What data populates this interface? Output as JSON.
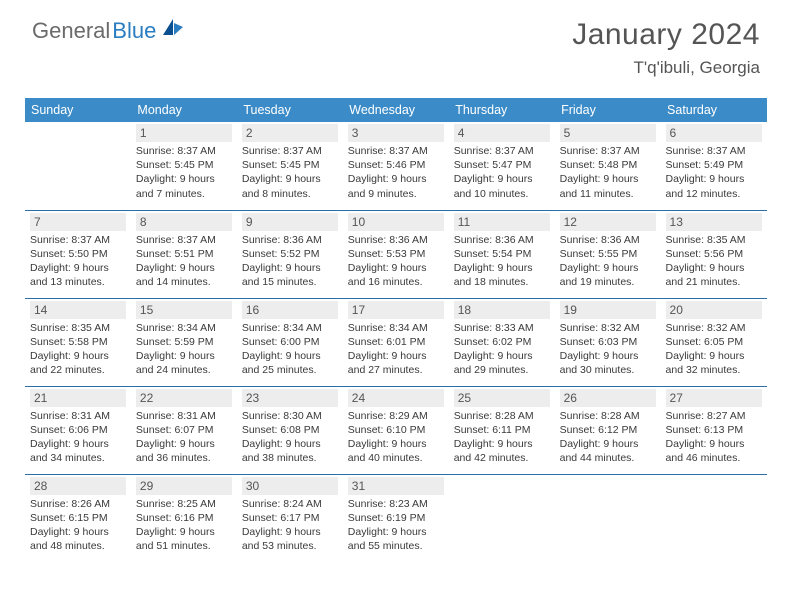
{
  "logo": {
    "part1": "General",
    "part2": "Blue"
  },
  "title": "January 2024",
  "location": "T'q'ibuli, Georgia",
  "header_bg": "#3b8bc8",
  "row_border": "#2a6fa8",
  "daynum_bg": "#ededed",
  "days": [
    "Sunday",
    "Monday",
    "Tuesday",
    "Wednesday",
    "Thursday",
    "Friday",
    "Saturday"
  ],
  "weeks": [
    [
      null,
      {
        "n": "1",
        "sr": "8:37 AM",
        "ss": "5:45 PM",
        "dl": "9 hours and 7 minutes."
      },
      {
        "n": "2",
        "sr": "8:37 AM",
        "ss": "5:45 PM",
        "dl": "9 hours and 8 minutes."
      },
      {
        "n": "3",
        "sr": "8:37 AM",
        "ss": "5:46 PM",
        "dl": "9 hours and 9 minutes."
      },
      {
        "n": "4",
        "sr": "8:37 AM",
        "ss": "5:47 PM",
        "dl": "9 hours and 10 minutes."
      },
      {
        "n": "5",
        "sr": "8:37 AM",
        "ss": "5:48 PM",
        "dl": "9 hours and 11 minutes."
      },
      {
        "n": "6",
        "sr": "8:37 AM",
        "ss": "5:49 PM",
        "dl": "9 hours and 12 minutes."
      }
    ],
    [
      {
        "n": "7",
        "sr": "8:37 AM",
        "ss": "5:50 PM",
        "dl": "9 hours and 13 minutes."
      },
      {
        "n": "8",
        "sr": "8:37 AM",
        "ss": "5:51 PM",
        "dl": "9 hours and 14 minutes."
      },
      {
        "n": "9",
        "sr": "8:36 AM",
        "ss": "5:52 PM",
        "dl": "9 hours and 15 minutes."
      },
      {
        "n": "10",
        "sr": "8:36 AM",
        "ss": "5:53 PM",
        "dl": "9 hours and 16 minutes."
      },
      {
        "n": "11",
        "sr": "8:36 AM",
        "ss": "5:54 PM",
        "dl": "9 hours and 18 minutes."
      },
      {
        "n": "12",
        "sr": "8:36 AM",
        "ss": "5:55 PM",
        "dl": "9 hours and 19 minutes."
      },
      {
        "n": "13",
        "sr": "8:35 AM",
        "ss": "5:56 PM",
        "dl": "9 hours and 21 minutes."
      }
    ],
    [
      {
        "n": "14",
        "sr": "8:35 AM",
        "ss": "5:58 PM",
        "dl": "9 hours and 22 minutes."
      },
      {
        "n": "15",
        "sr": "8:34 AM",
        "ss": "5:59 PM",
        "dl": "9 hours and 24 minutes."
      },
      {
        "n": "16",
        "sr": "8:34 AM",
        "ss": "6:00 PM",
        "dl": "9 hours and 25 minutes."
      },
      {
        "n": "17",
        "sr": "8:34 AM",
        "ss": "6:01 PM",
        "dl": "9 hours and 27 minutes."
      },
      {
        "n": "18",
        "sr": "8:33 AM",
        "ss": "6:02 PM",
        "dl": "9 hours and 29 minutes."
      },
      {
        "n": "19",
        "sr": "8:32 AM",
        "ss": "6:03 PM",
        "dl": "9 hours and 30 minutes."
      },
      {
        "n": "20",
        "sr": "8:32 AM",
        "ss": "6:05 PM",
        "dl": "9 hours and 32 minutes."
      }
    ],
    [
      {
        "n": "21",
        "sr": "8:31 AM",
        "ss": "6:06 PM",
        "dl": "9 hours and 34 minutes."
      },
      {
        "n": "22",
        "sr": "8:31 AM",
        "ss": "6:07 PM",
        "dl": "9 hours and 36 minutes."
      },
      {
        "n": "23",
        "sr": "8:30 AM",
        "ss": "6:08 PM",
        "dl": "9 hours and 38 minutes."
      },
      {
        "n": "24",
        "sr": "8:29 AM",
        "ss": "6:10 PM",
        "dl": "9 hours and 40 minutes."
      },
      {
        "n": "25",
        "sr": "8:28 AM",
        "ss": "6:11 PM",
        "dl": "9 hours and 42 minutes."
      },
      {
        "n": "26",
        "sr": "8:28 AM",
        "ss": "6:12 PM",
        "dl": "9 hours and 44 minutes."
      },
      {
        "n": "27",
        "sr": "8:27 AM",
        "ss": "6:13 PM",
        "dl": "9 hours and 46 minutes."
      }
    ],
    [
      {
        "n": "28",
        "sr": "8:26 AM",
        "ss": "6:15 PM",
        "dl": "9 hours and 48 minutes."
      },
      {
        "n": "29",
        "sr": "8:25 AM",
        "ss": "6:16 PM",
        "dl": "9 hours and 51 minutes."
      },
      {
        "n": "30",
        "sr": "8:24 AM",
        "ss": "6:17 PM",
        "dl": "9 hours and 53 minutes."
      },
      {
        "n": "31",
        "sr": "8:23 AM",
        "ss": "6:19 PM",
        "dl": "9 hours and 55 minutes."
      },
      null,
      null,
      null
    ]
  ],
  "labels": {
    "sunrise": "Sunrise:",
    "sunset": "Sunset:",
    "daylight": "Daylight:"
  }
}
